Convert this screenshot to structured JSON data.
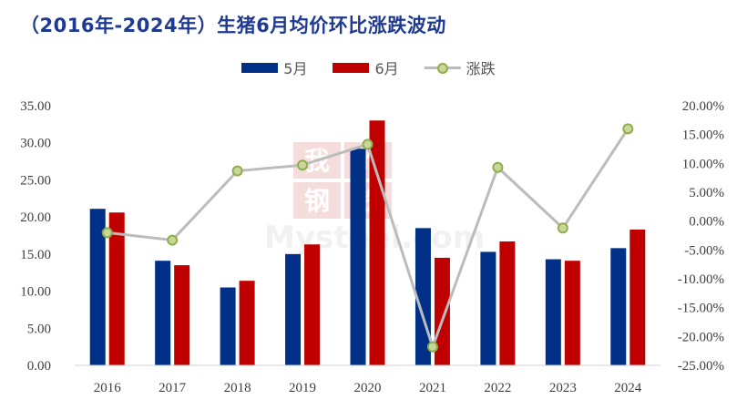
{
  "title": "（2016年-2024年）生猪6月均价环比涨跌波动",
  "legend": [
    {
      "label": "5月",
      "color": "#003087"
    },
    {
      "label": "6月",
      "color": "#c00000"
    },
    {
      "label": "涨跌",
      "color": "#bcbcbc",
      "marker": "#8fae4a"
    }
  ],
  "watermark": [
    "我",
    "的",
    "钢",
    "铁",
    "Mysteel.com"
  ],
  "chart_data": {
    "type": "bar",
    "categories": [
      "2016",
      "2017",
      "2018",
      "2019",
      "2020",
      "2021",
      "2022",
      "2023",
      "2024"
    ],
    "series": [
      {
        "name": "5月",
        "type": "bar",
        "axis": "left",
        "color": "#003087",
        "values": [
          21.1,
          14.1,
          10.5,
          15.0,
          29.2,
          18.5,
          15.3,
          14.3,
          15.8
        ]
      },
      {
        "name": "6月",
        "type": "bar",
        "axis": "left",
        "color": "#c00000",
        "values": [
          20.6,
          13.5,
          11.4,
          16.3,
          33.0,
          14.5,
          16.7,
          14.1,
          18.3
        ]
      },
      {
        "name": "涨跌",
        "type": "line",
        "axis": "right",
        "color": "#bcbcbc",
        "values": [
          -2.0,
          -3.3,
          8.7,
          9.7,
          13.3,
          -21.8,
          9.3,
          -1.2,
          16.0
        ]
      }
    ],
    "y_left": {
      "min": 0,
      "max": 35,
      "step": 5,
      "ticks": [
        "0.00",
        "5.00",
        "10.00",
        "15.00",
        "20.00",
        "25.00",
        "30.00",
        "35.00"
      ]
    },
    "y_right": {
      "min": -25,
      "max": 20,
      "step": 5,
      "ticks": [
        "-25.00%",
        "-20.00%",
        "-15.00%",
        "-10.00%",
        "-5.00%",
        "0.00%",
        "5.00%",
        "10.00%",
        "15.00%",
        "20.00%"
      ]
    },
    "grid": false,
    "legend_position": "top-center"
  }
}
